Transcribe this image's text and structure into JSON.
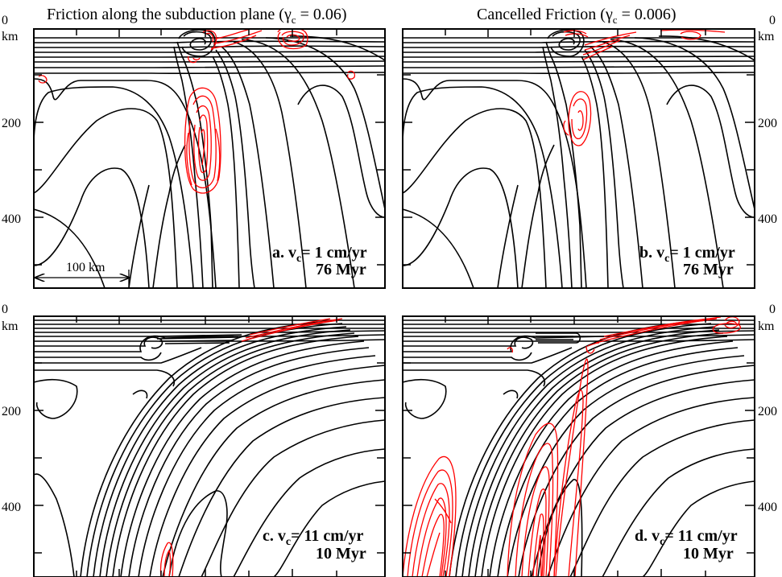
{
  "titles": {
    "left_main": "Friction along the subduction plane (",
    "left_gamma": "γ",
    "left_sub": "c",
    "left_value": " = 0.06)",
    "right_main": "Cancelled Friction  (",
    "right_gamma": "γ",
    "right_sub": "c",
    "right_value": " = 0.006)"
  },
  "axis": {
    "zero": "0",
    "unit": "km",
    "tick_200": "200",
    "tick_400": "400"
  },
  "scale_bar": "100 km",
  "panels": [
    {
      "letter": "a. v",
      "sub": "c",
      "rate": "= 1 cm/yr",
      "age": "76 Myr"
    },
    {
      "letter": "b. v",
      "sub": "c",
      "rate": "= 1 cm/yr",
      "age": "76 Myr"
    },
    {
      "letter": "c. v",
      "sub": "c",
      "rate": "= 11 cm/yr",
      "age": "10 Myr"
    },
    {
      "letter": "d. v",
      "sub": "c",
      "rate": "= 11 cm/yr",
      "age": "10 Myr"
    }
  ],
  "colors": {
    "isotherm": "#000000",
    "strain_rate": "#ff0000"
  }
}
